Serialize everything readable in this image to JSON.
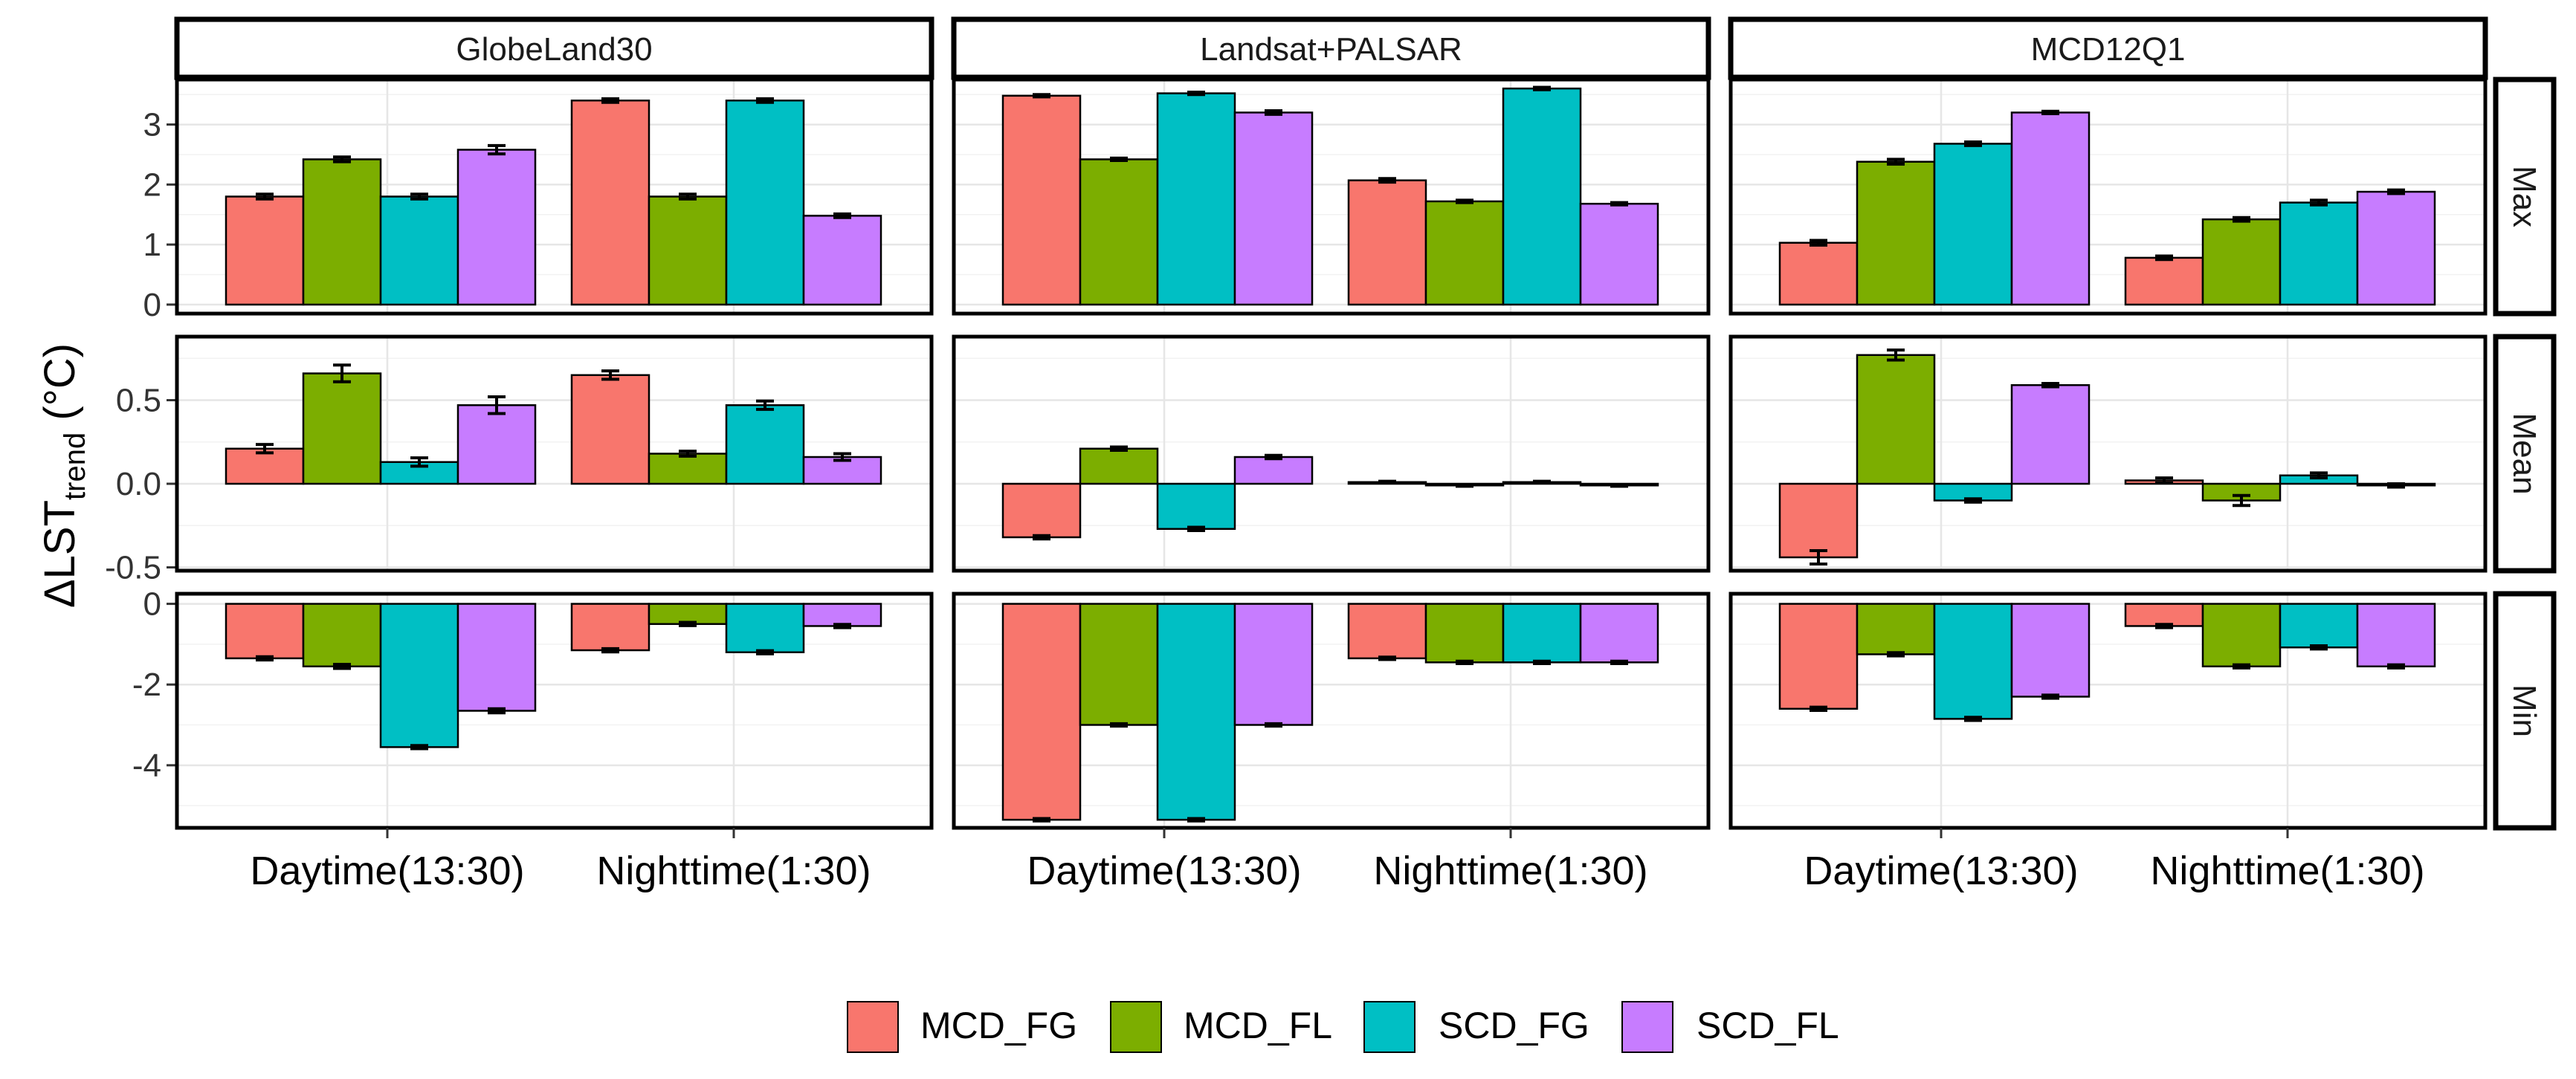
{
  "chart_data": {
    "type": "bar",
    "ylabel": {
      "main": "ΔLST",
      "sub": "trend",
      "unit": " (°C)"
    },
    "categories": [
      "Daytime(13:30)",
      "Nighttime(1:30)"
    ],
    "legend": {
      "position": "bottom",
      "series": [
        {
          "name": "MCD_FG",
          "color": "#F8766D"
        },
        {
          "name": "MCD_FL",
          "color": "#7CAE00"
        },
        {
          "name": "SCD_FG",
          "color": "#00BFC4"
        },
        {
          "name": "SCD_FL",
          "color": "#C77CFF"
        }
      ]
    },
    "columns": [
      "GlobeLand30",
      "Landsat+PALSAR",
      "MCD12Q1"
    ],
    "rows": [
      {
        "name": "Max",
        "ylim": [
          -0.15,
          3.75
        ],
        "ticks": [
          0,
          1,
          2,
          3
        ],
        "tick_labels": [
          "0",
          "1",
          "2",
          "3"
        ],
        "panels": [
          [
            [
              1.8,
              2.42,
              1.8,
              2.58
            ],
            [
              3.4,
              1.8,
              3.4,
              1.48
            ]
          ],
          [
            [
              3.48,
              2.42,
              3.52,
              3.2
            ],
            [
              2.07,
              1.72,
              3.6,
              1.68
            ]
          ],
          [
            [
              1.03,
              2.38,
              2.68,
              3.2
            ],
            [
              0.78,
              1.42,
              1.7,
              1.88
            ]
          ]
        ],
        "errors": [
          [
            [
              0.04,
              0.04,
              0.04,
              0.07
            ],
            [
              0.03,
              0.04,
              0.03,
              0.03
            ]
          ],
          [
            [
              0.02,
              0.02,
              0.02,
              0.03
            ],
            [
              0.03,
              0.02,
              0.02,
              0.02
            ]
          ],
          [
            [
              0.04,
              0.04,
              0.03,
              0.02
            ],
            [
              0.03,
              0.03,
              0.04,
              0.03
            ]
          ]
        ]
      },
      {
        "name": "Mean",
        "ylim": [
          -0.52,
          0.88
        ],
        "ticks": [
          -0.5,
          0,
          0.5
        ],
        "tick_labels": [
          "-0.5",
          "0.0",
          "0.5"
        ],
        "panels": [
          [
            [
              0.21,
              0.66,
              0.13,
              0.47
            ],
            [
              0.65,
              0.18,
              0.47,
              0.16
            ]
          ],
          [
            [
              -0.32,
              0.21,
              -0.27,
              0.16
            ],
            [
              0.01,
              -0.01,
              0.01,
              -0.01
            ]
          ],
          [
            [
              -0.44,
              0.77,
              -0.1,
              0.59
            ],
            [
              0.02,
              -0.1,
              0.05,
              -0.01
            ]
          ]
        ],
        "errors": [
          [
            [
              0.025,
              0.05,
              0.025,
              0.05
            ],
            [
              0.025,
              0.015,
              0.025,
              0.02
            ]
          ],
          [
            [
              0.01,
              0.01,
              0.01,
              0.01
            ],
            [
              0.005,
              0.005,
              0.005,
              0.005
            ]
          ],
          [
            [
              0.04,
              0.03,
              0.01,
              0.01
            ],
            [
              0.015,
              0.03,
              0.015,
              0.01
            ]
          ]
        ]
      },
      {
        "name": "Min",
        "ylim": [
          -5.55,
          0.25
        ],
        "ticks": [
          -4,
          -2,
          0
        ],
        "tick_labels": [
          "-4",
          "-2",
          "0"
        ],
        "panels": [
          [
            [
              -1.35,
              -1.55,
              -3.55,
              -2.65
            ],
            [
              -1.15,
              -0.5,
              -1.2,
              -0.55
            ]
          ],
          [
            [
              -5.35,
              -3.0,
              -5.35,
              -3.0
            ],
            [
              -1.35,
              -1.45,
              -1.45,
              -1.45
            ]
          ],
          [
            [
              -2.6,
              -1.25,
              -2.85,
              -2.3
            ],
            [
              -0.55,
              -1.55,
              -1.08,
              -1.55
            ]
          ]
        ],
        "errors": [
          [
            [
              0.04,
              0.05,
              0.04,
              0.05
            ],
            [
              0.04,
              0.04,
              0.04,
              0.04
            ]
          ],
          [
            [
              0.03,
              0.03,
              0.03,
              0.03
            ],
            [
              0.03,
              0.03,
              0.03,
              0.03
            ]
          ],
          [
            [
              0.04,
              0.04,
              0.04,
              0.04
            ],
            [
              0.04,
              0.04,
              0.04,
              0.04
            ]
          ]
        ]
      }
    ]
  }
}
